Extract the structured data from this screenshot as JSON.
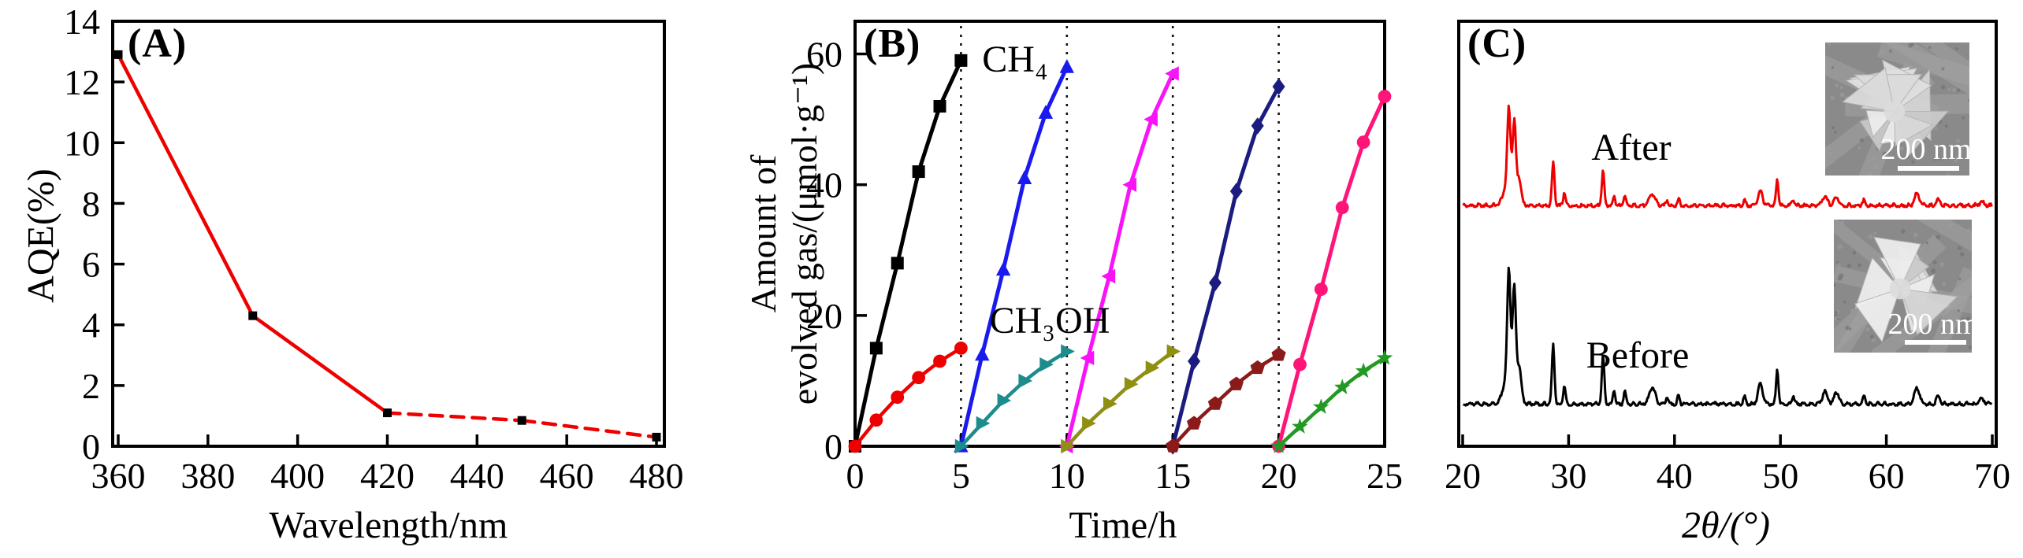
{
  "chart_data": [
    {
      "id": "A",
      "type": "line",
      "panel_label": "(A)",
      "xlabel": "Wavelength/nm",
      "ylabel": "AQE(%)",
      "xlim": [
        360,
        480
      ],
      "ylim": [
        0,
        14
      ],
      "x_ticks": [
        360,
        380,
        400,
        420,
        440,
        460,
        480
      ],
      "y_ticks": [
        0,
        2,
        4,
        6,
        8,
        10,
        12,
        14
      ],
      "grid": false,
      "series": [
        {
          "name": "AQE",
          "line_color": "#ee0000",
          "marker": "square",
          "marker_color": "#000000",
          "x": [
            360,
            390,
            420,
            450,
            480
          ],
          "y": [
            12.9,
            4.3,
            1.1,
            0.85,
            0.3
          ],
          "dashed_segments": [
            2,
            3
          ]
        }
      ]
    },
    {
      "id": "B",
      "type": "line",
      "panel_label": "(B)",
      "xlabel": "Time/h",
      "ylabel_lines": [
        "Amount of",
        "evolved gas/(μmol·g⁻¹)"
      ],
      "xlim": [
        0,
        25
      ],
      "ylim": [
        0,
        65
      ],
      "x_ticks": [
        0,
        5,
        10,
        15,
        20,
        25
      ],
      "y_ticks": [
        0,
        20,
        40,
        60
      ],
      "grid": false,
      "cycle_separators_x": [
        5,
        10,
        15,
        20
      ],
      "annotations": [
        {
          "text": "CH₄"
        },
        {
          "text": "CH₃OH"
        }
      ],
      "series": [
        {
          "name": "CH4 cycle 1",
          "gas": "CH4",
          "cycle": 1,
          "line_color": "#000000",
          "marker": "square",
          "x": [
            0,
            1,
            2,
            3,
            4,
            5
          ],
          "y": [
            0,
            15,
            28,
            42,
            52,
            59
          ]
        },
        {
          "name": "CH3OH cycle 1",
          "gas": "CH3OH",
          "cycle": 1,
          "line_color": "#ee0000",
          "marker": "circle",
          "x": [
            0,
            1,
            2,
            3,
            4,
            5
          ],
          "y": [
            0,
            4,
            7.5,
            10.5,
            13,
            15
          ]
        },
        {
          "name": "CH4 cycle 2",
          "gas": "CH4",
          "cycle": 2,
          "line_color": "#1a1aee",
          "marker": "triangle-up",
          "x": [
            5,
            6,
            7,
            8,
            9,
            10
          ],
          "y": [
            0,
            14,
            27,
            41,
            51,
            58
          ]
        },
        {
          "name": "CH3OH cycle 2",
          "gas": "CH3OH",
          "cycle": 2,
          "line_color": "#1d8c8c",
          "marker": "triangle-right",
          "x": [
            5,
            6,
            7,
            8,
            9,
            10
          ],
          "y": [
            0,
            3.5,
            7,
            10,
            12.5,
            14.5
          ]
        },
        {
          "name": "CH4 cycle 3",
          "gas": "CH4",
          "cycle": 3,
          "line_color": "#f813f8",
          "marker": "triangle-left",
          "x": [
            10,
            11,
            12,
            13,
            14,
            15
          ],
          "y": [
            0,
            13.5,
            26,
            40,
            50,
            57
          ]
        },
        {
          "name": "CH3OH cycle 3",
          "gas": "CH3OH",
          "cycle": 3,
          "line_color": "#8f8f12",
          "marker": "triangle-right",
          "x": [
            10,
            11,
            12,
            13,
            14,
            15
          ],
          "y": [
            0,
            3.5,
            6.5,
            9.5,
            12,
            14.5
          ]
        },
        {
          "name": "CH4 cycle 4",
          "gas": "CH4",
          "cycle": 4,
          "line_color": "#1c1c80",
          "marker": "diamond",
          "x": [
            15,
            16,
            17,
            18,
            19,
            20
          ],
          "y": [
            0,
            13,
            25,
            39,
            49,
            55
          ]
        },
        {
          "name": "CH3OH cycle 4",
          "gas": "CH3OH",
          "cycle": 4,
          "line_color": "#8b1a1a",
          "marker": "pentagon",
          "x": [
            15,
            16,
            17,
            18,
            19,
            20
          ],
          "y": [
            0,
            3.5,
            6.5,
            9.5,
            12,
            14
          ]
        },
        {
          "name": "CH4 cycle 5",
          "gas": "CH4",
          "cycle": 5,
          "line_color": "#ff1478",
          "marker": "circle",
          "x": [
            20,
            21,
            22,
            23,
            24,
            25
          ],
          "y": [
            0,
            12.5,
            24,
            36.5,
            46.5,
            53.5
          ]
        },
        {
          "name": "CH3OH cycle 5",
          "gas": "CH3OH",
          "cycle": 5,
          "line_color": "#229922",
          "marker": "star",
          "x": [
            20,
            21,
            22,
            23,
            24,
            25
          ],
          "y": [
            0,
            3,
            6,
            9,
            11.5,
            13.5
          ]
        }
      ]
    },
    {
      "id": "C",
      "type": "xrd",
      "panel_label": "(C)",
      "xlabel": "2θ/(°)",
      "xlim": [
        20,
        70
      ],
      "x_ticks": [
        20,
        30,
        40,
        50,
        60,
        70
      ],
      "grid": false,
      "peaks_2theta_intensity_width": [
        [
          24.35,
          0.92,
          0.14
        ],
        [
          24.55,
          0.45,
          0.5
        ],
        [
          24.88,
          0.8,
          0.14
        ],
        [
          25.35,
          0.25,
          0.18
        ],
        [
          28.55,
          0.58,
          0.12
        ],
        [
          29.6,
          0.18,
          0.11
        ],
        [
          33.25,
          0.47,
          0.12
        ],
        [
          34.3,
          0.13,
          0.11
        ],
        [
          35.3,
          0.13,
          0.11
        ],
        [
          37.9,
          0.16,
          0.28
        ],
        [
          39.3,
          0.08,
          0.11
        ],
        [
          40.4,
          0.09,
          0.11
        ],
        [
          46.6,
          0.07,
          0.12
        ],
        [
          48.1,
          0.2,
          0.22
        ],
        [
          49.7,
          0.36,
          0.11
        ],
        [
          51.2,
          0.08,
          0.13
        ],
        [
          54.2,
          0.12,
          0.25
        ],
        [
          55.3,
          0.12,
          0.22
        ],
        [
          57.9,
          0.07,
          0.14
        ],
        [
          62.9,
          0.16,
          0.25
        ],
        [
          64.9,
          0.08,
          0.18
        ],
        [
          69.0,
          0.05,
          0.25
        ]
      ],
      "traces": [
        {
          "label": "After",
          "color": "#ee0000",
          "baseline_frac": 0.437,
          "height_frac": 0.23
        },
        {
          "label": "Before",
          "color": "#000000",
          "baseline_frac": 0.904,
          "height_frac": 0.319
        }
      ],
      "insets": [
        {
          "name": "sem-after",
          "scale_label": "200 nm"
        },
        {
          "name": "sem-before",
          "scale_label": "200 nm"
        }
      ]
    }
  ]
}
